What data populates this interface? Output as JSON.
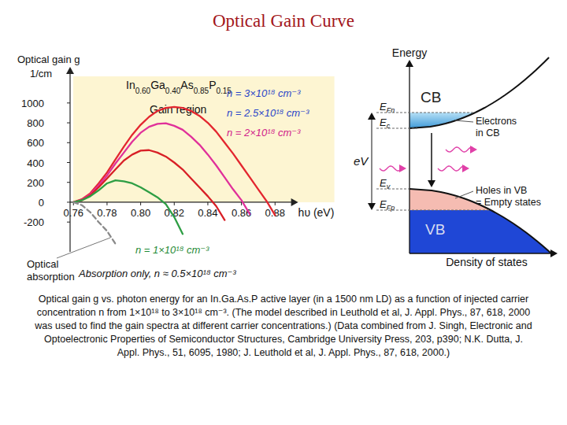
{
  "header": {
    "title": "Optical Gain Curve"
  },
  "chart_data": {
    "type": "line",
    "title": "In0.60Ga0.40As0.85P0.15",
    "y_label": "Optical gain g",
    "y_unit": "1/cm",
    "x_label": "hυ (eV)",
    "annotations": [
      "Gain region",
      "Optical absorption"
    ],
    "x": [
      0.76,
      0.765,
      0.77,
      0.775,
      0.78,
      0.785,
      0.79,
      0.795,
      0.8,
      0.805,
      0.81,
      0.815,
      0.82,
      0.825,
      0.83,
      0.835,
      0.84,
      0.845,
      0.85,
      0.855,
      0.86,
      0.865,
      0.87,
      0.875,
      0.88,
      0.885
    ],
    "series": [
      {
        "name": "n = 3×10¹⁸ cm⁻³",
        "color": "#e3262f",
        "line_style": "solid",
        "values": [
          0,
          30,
          90,
          190,
          300,
          430,
          560,
          680,
          780,
          860,
          920,
          950,
          960,
          950,
          920,
          870,
          800,
          710,
          600,
          490,
          370,
          250,
          130,
          10,
          -130,
          null
        ]
      },
      {
        "name": "n = 2.5×10¹⁸ cm⁻³",
        "color": "#e0309a",
        "line_style": "solid",
        "values": [
          0,
          25,
          80,
          170,
          270,
          390,
          500,
          610,
          700,
          760,
          790,
          795,
          770,
          730,
          660,
          580,
          480,
          370,
          250,
          130,
          20,
          -120,
          null,
          null,
          null,
          null
        ]
      },
      {
        "name": "n = 2×10¹⁸ cm⁻³",
        "color": "#d81f26",
        "line_style": "solid",
        "values": [
          0,
          20,
          70,
          150,
          240,
          330,
          420,
          480,
          520,
          525,
          500,
          460,
          400,
          330,
          240,
          150,
          60,
          -40,
          -180,
          null,
          null,
          null,
          null,
          null,
          null,
          null
        ]
      },
      {
        "name": "n = 1×10¹⁸ cm⁻³",
        "color": "#2e9e44",
        "line_style": "solid",
        "values": [
          0,
          20,
          60,
          120,
          190,
          220,
          210,
          190,
          150,
          100,
          50,
          -20,
          -150,
          -320,
          null,
          null,
          null,
          null,
          null,
          null,
          null,
          null,
          null,
          null,
          null,
          null
        ]
      },
      {
        "name": "Absorption only, n ≈ 0.5×10¹⁸ cm⁻³",
        "color": "#8a8a8a",
        "line_style": "dashed",
        "values": [
          0,
          -30,
          -100,
          -200,
          -290,
          -420,
          null,
          null,
          null,
          null,
          null,
          null,
          null,
          null,
          null,
          null,
          null,
          null,
          null,
          null,
          null,
          null,
          null,
          null,
          null,
          null
        ]
      }
    ],
    "xlim": [
      0.758,
      0.89
    ],
    "ylim": [
      -500,
      1300
    ],
    "xticks": [
      0.76,
      0.78,
      {
        "value": 0.8,
        "label": "0.80"
      },
      0.82,
      0.84,
      0.86,
      0.88
    ],
    "yticks": [
      -200,
      0,
      200,
      400,
      600,
      800,
      1000
    ],
    "grid": false
  },
  "diagram": {
    "energy_axis": "Energy",
    "dos_axis": "Density of states",
    "cb": "CB",
    "vb": "VB",
    "levels": [
      {
        "text": "E",
        "sub": "Fn"
      },
      {
        "text": "E",
        "sub": "c"
      },
      {
        "text": "E",
        "sub": "v"
      },
      {
        "text": "E",
        "sub": "Fp"
      }
    ],
    "voltage": "eV",
    "electrons": [
      "Electrons",
      "in CB"
    ],
    "holes": [
      "Holes in VB",
      "= Empty states"
    ]
  },
  "caption": "Optical gain g vs. photon energy for an In.Ga.As.P active layer (in a 1500 nm LD) as a function of injected carrier concentration n from 1×10¹⁸ to 3×10¹⁸ cm⁻³. (The model described in Leuthold et al, J. Appl. Phys., 87, 618, 2000 was used to find the gain spectra at different carrier concentrations.) (Data combined from J. Singh, Electronic and Optoelectronic Properties of Semiconductor Structures, Cambridge University Press, 203, p390; N.K. Dutta, J. Appl. Phys., 51, 6095, 1980; J. Leuthold et al, J. Appl. Phys., 87, 618, 2000.)"
}
